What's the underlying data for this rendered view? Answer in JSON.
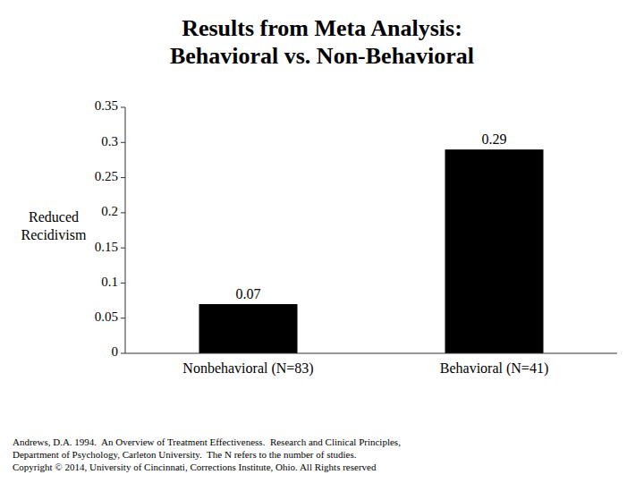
{
  "chart_data": {
    "type": "bar",
    "title": "Results from Meta Analysis:\nBehavioral vs. Non-Behavioral",
    "categories": [
      "Nonbehavioral (N=83)",
      "Behavioral (N=41)"
    ],
    "values": [
      0.07,
      0.29
    ],
    "color": "#000000",
    "y_label": "Reduced\nRecidivism",
    "ylim": [
      0,
      0.35
    ],
    "yticks": [
      0,
      0.05,
      0.1,
      0.15,
      0.2,
      0.25,
      0.3,
      0.35
    ],
    "grid": false,
    "data_labels": true,
    "annotations": [
      "Andrews, D.A. 1994.  An Overview of Treatment Effectiveness.  Research and Clinical Principles,\nDepartment of Psychology, Carleton University.  The N refers to the number of studies.\nCopyright © 2014, University of Cincinnati, Corrections Institute, Ohio. All Rights reserved"
    ]
  }
}
